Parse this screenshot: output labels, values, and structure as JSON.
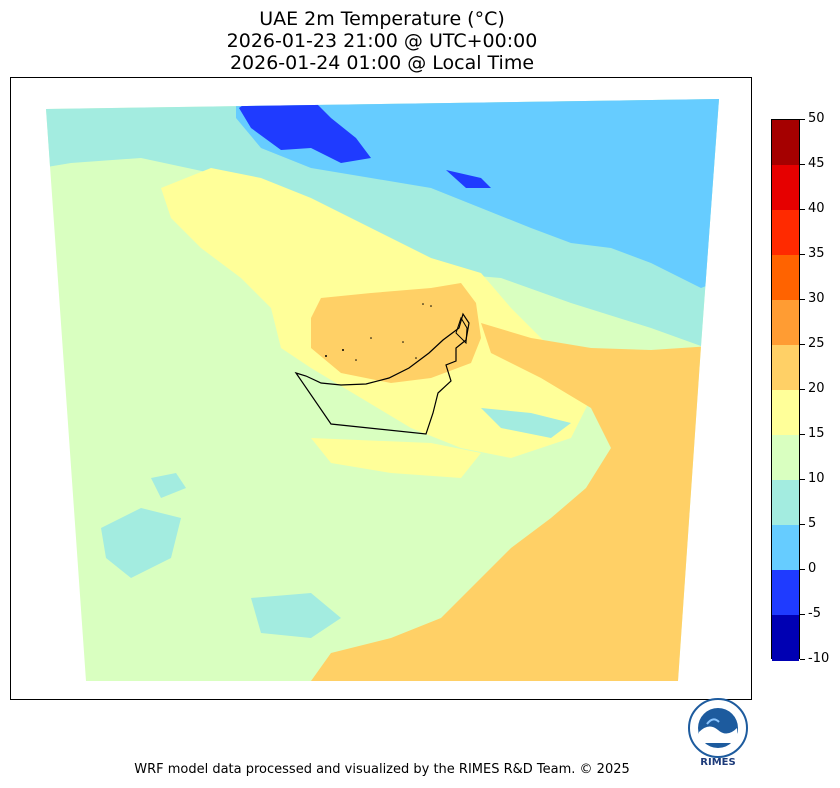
{
  "title": {
    "line1": "UAE 2m Temperature (°C)",
    "line2": "2026-01-23 21:00 @ UTC+00:00",
    "line3": "2026-01-24 01:00 @ Local Time"
  },
  "colorbar": {
    "levels": [
      "50",
      "45",
      "40",
      "35",
      "30",
      "25",
      "20",
      "15",
      "10",
      "5",
      "0",
      "-5",
      "-10"
    ],
    "colors": [
      "#a50000",
      "#e60000",
      "#ff2a00",
      "#ff6300",
      "#ff9c33",
      "#ffd066",
      "#ffff99",
      "#d9ffc0",
      "#a3ece0",
      "#66ccff",
      "#1f3bff",
      "#0000b3"
    ]
  },
  "logo": {
    "text": "RIMES",
    "ring_text": "Regional Integrated Multi-Hazard Early Warning System"
  },
  "footer": "WRF model data processed and visualized by the RIMES R&D Team. © 2025"
}
